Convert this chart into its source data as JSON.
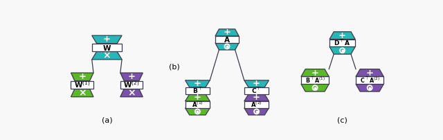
{
  "teal": "#29b6b6",
  "green": "#5cb82a",
  "purple": "#7a52aa",
  "white": "#ffffff",
  "edge": "#3a3a4a",
  "bg": "#f8f8f8",
  "label_a": "(a)",
  "label_b": "(b)",
  "label_c": "(c)"
}
